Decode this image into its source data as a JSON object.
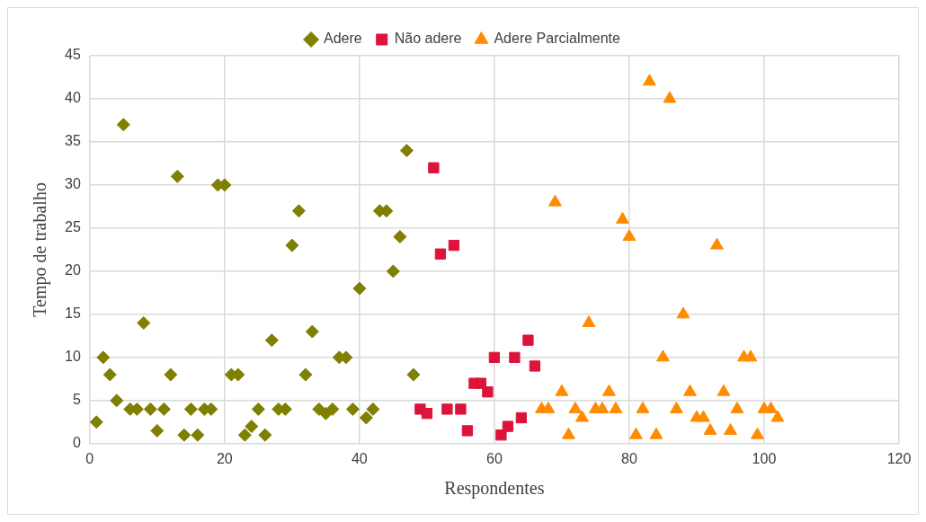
{
  "chart_data": {
    "type": "scatter",
    "xlabel": "Respondentes",
    "ylabel": "Tempo de trabalho",
    "xlim": [
      0,
      120
    ],
    "xticks": [
      0,
      20,
      40,
      60,
      80,
      100,
      120
    ],
    "ylim": [
      0,
      45
    ],
    "yticks": [
      0,
      5,
      10,
      15,
      20,
      25,
      30,
      35,
      40,
      45
    ],
    "grid": true,
    "legend": "top",
    "series": [
      {
        "name": "Adere",
        "color": "#7f7f00",
        "marker": "diamond",
        "x": [
          1,
          2,
          3,
          4,
          5,
          6,
          7,
          8,
          9,
          10,
          11,
          12,
          13,
          14,
          15,
          16,
          17,
          18,
          19,
          20,
          21,
          22,
          23,
          24,
          25,
          26,
          27,
          28,
          29,
          30,
          31,
          32,
          33,
          34,
          35,
          36,
          37,
          38,
          39,
          40,
          41,
          42,
          43,
          44,
          45,
          46,
          47,
          48
        ],
        "values": [
          2.5,
          10,
          8,
          5,
          37,
          4,
          4,
          14,
          4,
          1.5,
          4,
          8,
          31,
          1,
          4,
          1,
          4,
          4,
          30,
          30,
          8,
          8,
          1,
          2,
          4,
          1,
          12,
          4,
          4,
          23,
          27,
          8,
          13,
          4,
          3.5,
          4,
          10,
          10,
          4,
          18,
          3,
          4,
          27,
          27,
          20,
          24,
          34,
          8
        ]
      },
      {
        "name": "Não adere",
        "color": "#dc143c",
        "marker": "square",
        "x": [
          49,
          50,
          51,
          52,
          53,
          54,
          55,
          56,
          57,
          58,
          59,
          60,
          61,
          62,
          63,
          64,
          65,
          66
        ],
        "values": [
          4,
          3.5,
          32,
          22,
          4,
          23,
          4,
          1.5,
          7,
          7,
          6,
          10,
          1,
          2,
          10,
          3,
          12,
          9
        ]
      },
      {
        "name": "Adere Parcialmente",
        "color": "#ff8c00",
        "marker": "triangle",
        "x": [
          67,
          68,
          69,
          70,
          71,
          72,
          73,
          74,
          75,
          76,
          77,
          78,
          79,
          80,
          81,
          82,
          83,
          84,
          85,
          86,
          87,
          88,
          89,
          90,
          91,
          92,
          93,
          94,
          95,
          96,
          97,
          98,
          99,
          100,
          101,
          102
        ],
        "values": [
          4,
          4,
          28,
          6,
          1,
          4,
          3,
          14,
          4,
          4,
          6,
          4,
          26,
          24,
          1,
          4,
          42,
          1,
          10,
          40,
          4,
          15,
          6,
          3,
          3,
          1.5,
          23,
          6,
          1.5,
          4,
          10,
          10,
          1,
          4,
          4,
          3
        ]
      }
    ]
  }
}
